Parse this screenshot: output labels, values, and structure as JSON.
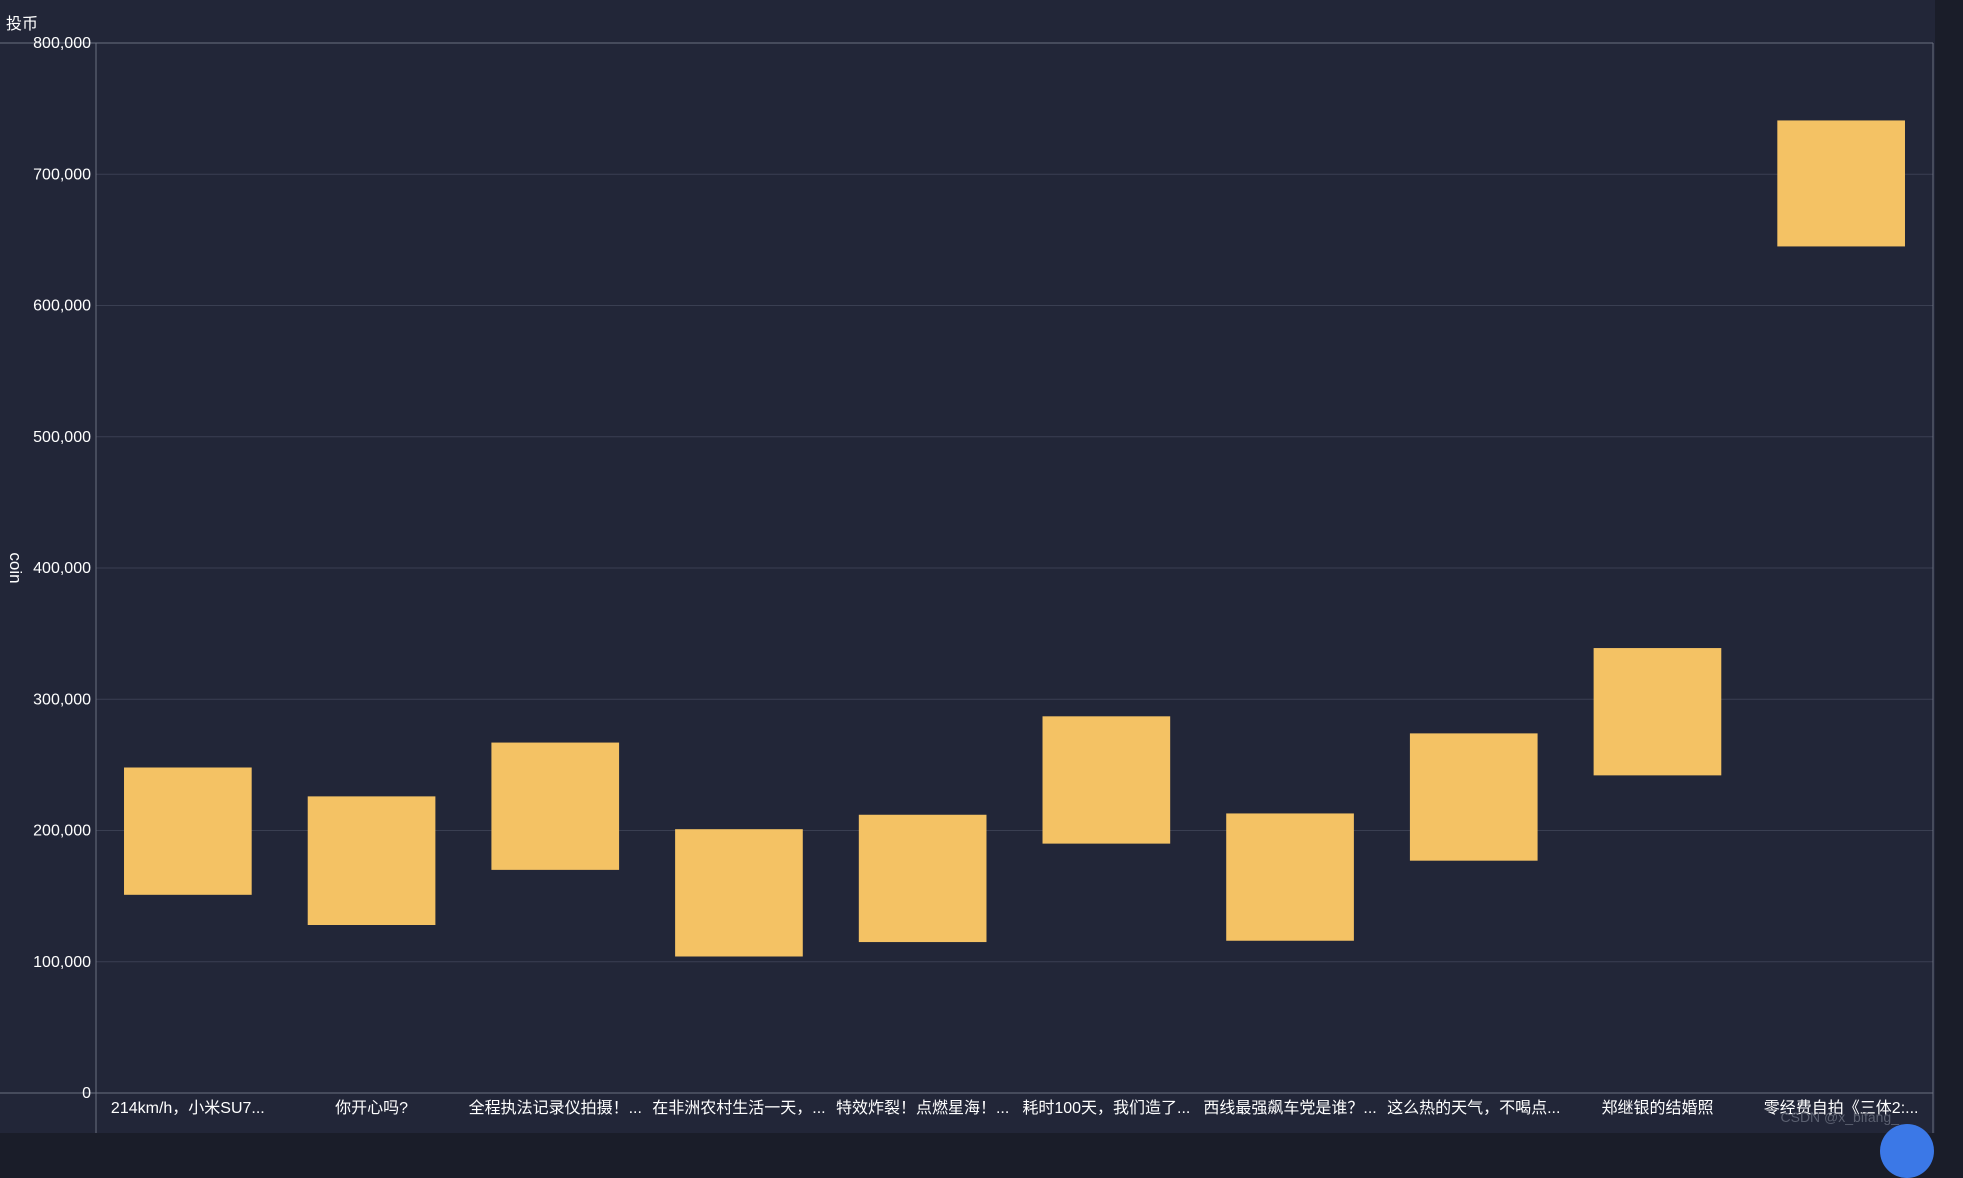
{
  "chart_data": {
    "type": "candlestick",
    "title": "投币",
    "ylabel": "coin",
    "xlabel": "",
    "ylim": [
      0,
      800000
    ],
    "yticks": [
      0,
      100000,
      200000,
      300000,
      400000,
      500000,
      600000,
      700000,
      800000
    ],
    "ytick_labels": [
      "0",
      "100,000",
      "200,000",
      "300,000",
      "400,000",
      "500,000",
      "600,000",
      "700,000",
      "800,000"
    ],
    "grid": true,
    "categories": [
      "214km/h，小米SU7...",
      "你开心吗?",
      "全程执法记录仪拍摄！...",
      "在非洲农村生活一天，...",
      "特效炸裂！点燃星海！...",
      "耗时100天，我们造了...",
      "西线最强飙车党是谁？...",
      "这么热的天气，不喝点...",
      "郑继银的结婚照",
      "零经费自拍《三体2:..."
    ],
    "series": [
      {
        "low": [
          151000,
          128000,
          170000,
          104000,
          115000,
          190000,
          116000,
          177000,
          242000,
          645000
        ],
        "high": [
          248000,
          226000,
          267000,
          201000,
          212000,
          287000,
          213000,
          274000,
          339000,
          741000
        ]
      }
    ],
    "colors": {
      "box": "#f4c264",
      "grid": "#3a3f52",
      "axis": "#6b7080",
      "text": "#ffffff"
    }
  },
  "watermark": "CSDN @x_bifang_"
}
